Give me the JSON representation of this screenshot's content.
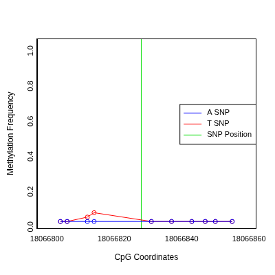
{
  "chart_data": {
    "type": "line",
    "x_label": "CpG Coordinates",
    "y_label": "Methylation Frequency",
    "x": [
      18066804,
      18066806,
      18066812,
      18066814,
      18066831,
      18066837,
      18066843,
      18066847,
      18066850,
      18066855
    ],
    "series": [
      {
        "name": "A SNP",
        "color": "#0000ff",
        "marker": "circle",
        "values": [
          0,
          0,
          0,
          0,
          0,
          0,
          0,
          0,
          0,
          0
        ]
      },
      {
        "name": "T SNP",
        "color": "#ff0000",
        "marker": "circle",
        "values": [
          0,
          0,
          0.025,
          0.05,
          0,
          0,
          0,
          0,
          0,
          0
        ]
      }
    ],
    "vline": {
      "name": "SNP Position",
      "color": "#00dd00",
      "x": 18066828
    },
    "xlim": [
      18066797,
      18066862
    ],
    "xticks": [
      18066800,
      18066820,
      18066840,
      18066860
    ],
    "ylim": [
      -0.04,
      1.04
    ],
    "yticks": [
      {
        "value": 0,
        "label": "0.0"
      },
      {
        "value": 0.2,
        "label": "0.2"
      },
      {
        "value": 0.4,
        "label": "0.4"
      },
      {
        "value": 0.6,
        "label": "0.6"
      },
      {
        "value": 0.8,
        "label": "0.8"
      },
      {
        "value": 1,
        "label": "1.0"
      }
    ],
    "grid": false,
    "legend": "right"
  }
}
